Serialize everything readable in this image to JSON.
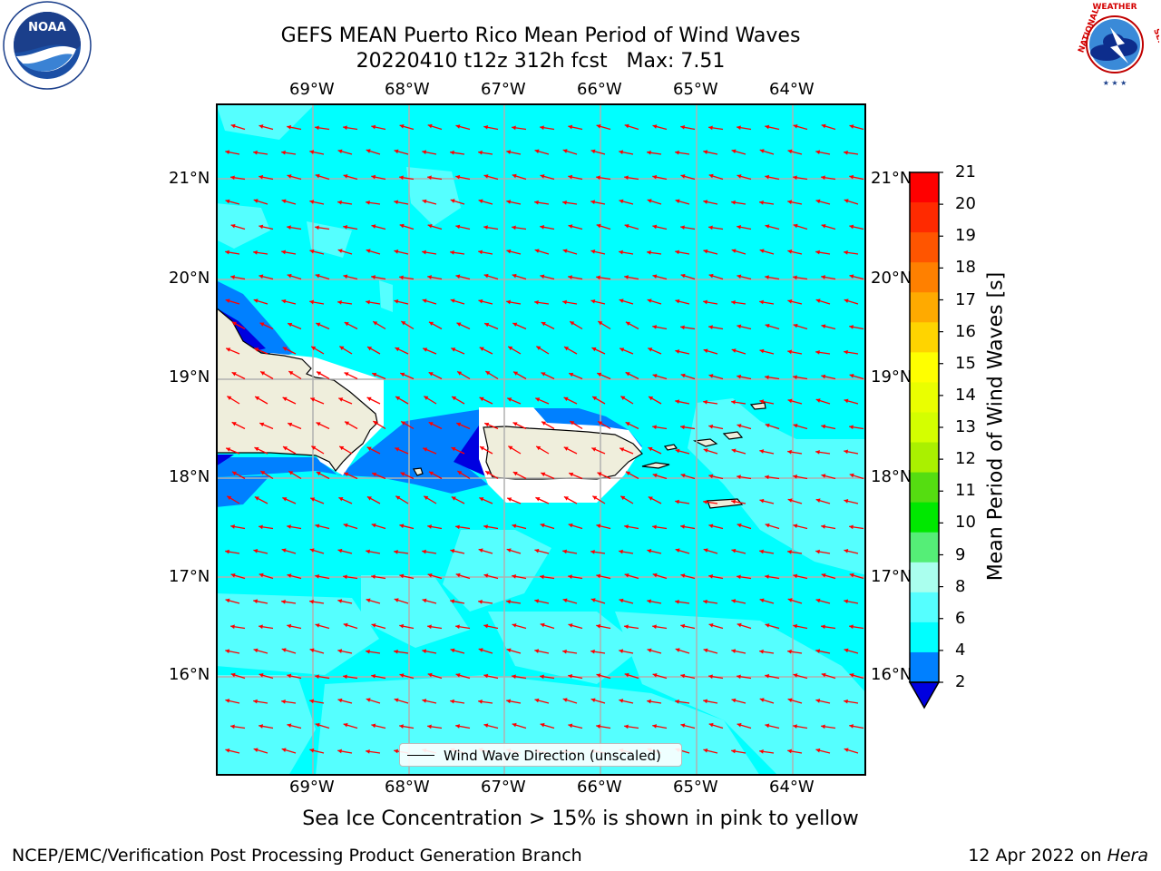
{
  "title": {
    "line1": "GEFS MEAN Puerto Rico Mean Period of Wind Waves",
    "line2": "20220410 t12z 312h fcst   Max: 7.51"
  },
  "axes": {
    "lon_labels": [
      "69°W",
      "68°W",
      "67°W",
      "66°W",
      "65°W",
      "64°W"
    ],
    "lat_labels": [
      "21°N",
      "20°N",
      "19°N",
      "18°N",
      "17°N",
      "16°N"
    ]
  },
  "colorbar": {
    "label": "Mean Period of Wind Waves [s]",
    "ticks": [
      "21",
      "20",
      "19",
      "18",
      "17",
      "16",
      "15",
      "14",
      "13",
      "12",
      "11",
      "10",
      "9",
      "8",
      "6",
      "4",
      "2"
    ],
    "colors": [
      "#ff0000",
      "#ff2a00",
      "#ff5500",
      "#ff8000",
      "#ffaa00",
      "#ffd400",
      "#ffff00",
      "#eaff00",
      "#d4ff00",
      "#aaf000",
      "#55dd11",
      "#00e800",
      "#55ee77",
      "#aaffee",
      "#55ffff",
      "#00ffff",
      "#0080ff",
      "#0000e0"
    ]
  },
  "legend": {
    "label": "Wind Wave Direction (unscaled)"
  },
  "subtitle": "Sea Ice Concentration > 15% is shown in pink to yellow",
  "footer": {
    "left": "NCEP/EMC/Verification Post Processing Product Generation Branch",
    "right_date": "12 Apr 2022 on ",
    "right_host": "Hera"
  },
  "logos": {
    "left": {
      "text": "NOAA",
      "icon": "noaa-logo"
    },
    "right": {
      "text": "NATIONAL WEATHER SERVICE",
      "icon": "nws-logo"
    }
  },
  "colors": {
    "ocean": "#00ffff",
    "ocean_light": "#55ffff",
    "shallow": "#0080ff",
    "deep": "#0000e0",
    "land": "#efeedc",
    "arrows": "#ff0000"
  }
}
